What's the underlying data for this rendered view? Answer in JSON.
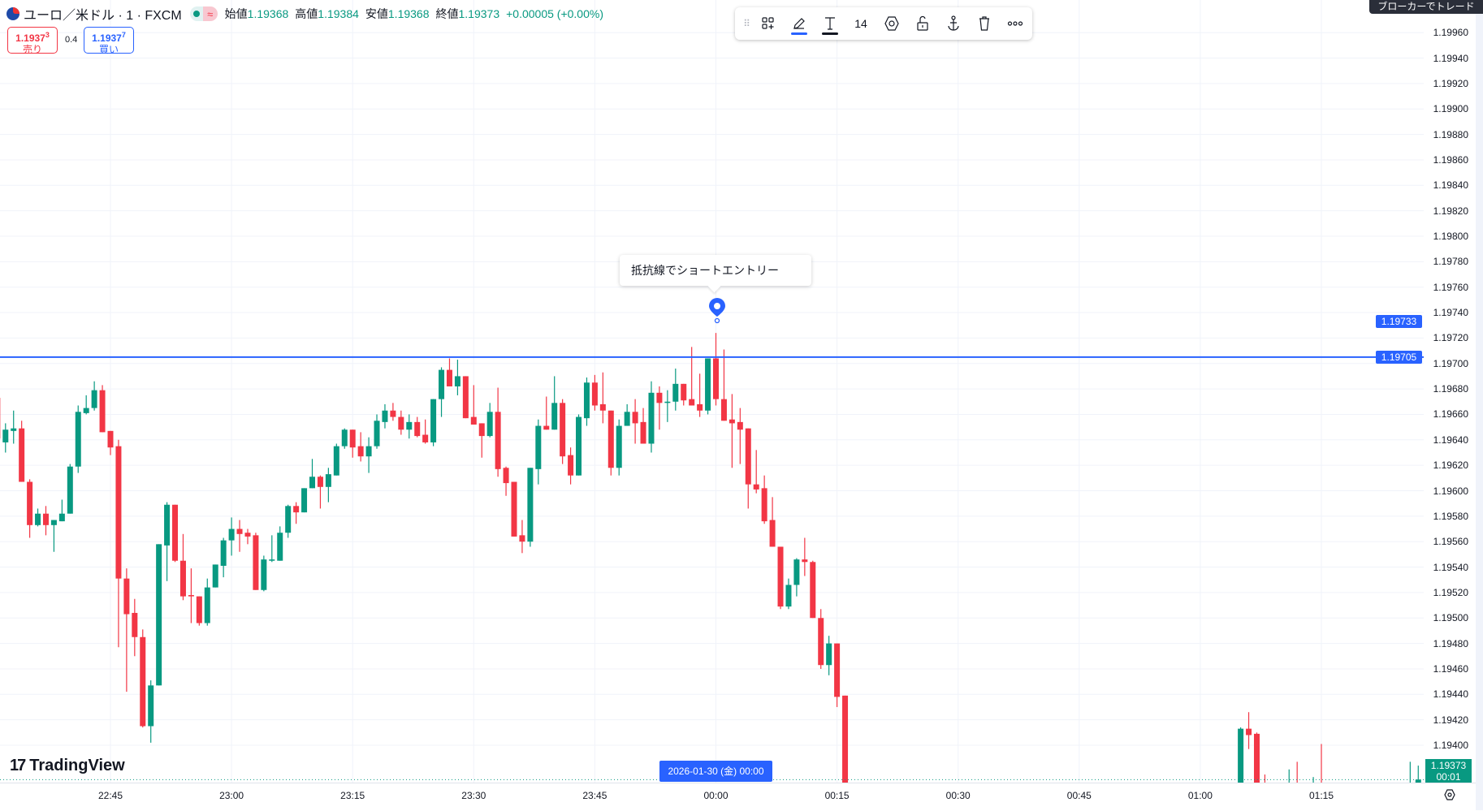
{
  "header": {
    "symbol": "ユーロ／米ドル · 1 · FXCM",
    "market_status_badge": "≈",
    "open_label": "始値",
    "open": "1.19368",
    "high_label": "高値",
    "high": "1.19384",
    "low_label": "安値",
    "low": "1.19368",
    "close_label": "終値",
    "close": "1.19373",
    "change": "+0.00005 (+0.00%)"
  },
  "trade": {
    "sell_price": "1.1937",
    "sell_price_sup": "3",
    "sell_label": "売り",
    "spread": "0.4",
    "buy_price": "1.1937",
    "buy_price_sup": "7",
    "buy_label": "買い"
  },
  "toolbar": {
    "font_size": "14",
    "icons": [
      "drag-handle",
      "template",
      "pencil",
      "text",
      "settings",
      "lock",
      "anchor",
      "trash",
      "more"
    ],
    "line_color": "#2962ff",
    "text_color": "#131722"
  },
  "broker_button": "ブローカーでトレード",
  "note": {
    "text": "抵抗線でショートエントリー",
    "pin_color": "#2962ff"
  },
  "logo": "TradingView",
  "colors": {
    "up": "#089981",
    "down": "#f23645",
    "line": "#2962ff",
    "grid": "#f0f3fa"
  },
  "price_labels": {
    "pin_price": "1.19733",
    "line_price": "1.19705",
    "current_price": "1.19373",
    "countdown": "00:01"
  },
  "time_selection": "2026-01-30 (金)  00:00",
  "chart_data": {
    "type": "candlestick",
    "interval": "1m",
    "y_ticks": [
      "1.19960",
      "1.19940",
      "1.19920",
      "1.19900",
      "1.19880",
      "1.19860",
      "1.19840",
      "1.19820",
      "1.19800",
      "1.19780",
      "1.19760",
      "1.19740",
      "1.19720",
      "1.19700",
      "1.19680",
      "1.19660",
      "1.19640",
      "1.19620",
      "1.19600",
      "1.19580",
      "1.19560",
      "1.19540",
      "1.19520",
      "1.19500",
      "1.19480",
      "1.19460",
      "1.19440",
      "1.19420",
      "1.19400"
    ],
    "x_ticks": [
      "22:45",
      "23:00",
      "23:15",
      "23:30",
      "23:45",
      "00:00",
      "00:15",
      "00:30",
      "00:45",
      "01:00",
      "01:15"
    ],
    "horizontal_line": 1.19705,
    "grid": true,
    "candles": [
      [
        "22:31",
        1.19673,
        1.19688,
        1.19638,
        1.19641
      ],
      [
        "22:32",
        1.19638,
        1.19653,
        1.1963,
        1.19648
      ],
      [
        "22:33",
        1.19647,
        1.19663,
        1.19637,
        1.19649
      ],
      [
        "22:34",
        1.19649,
        1.19655,
        1.19607,
        1.19607
      ],
      [
        "22:35",
        1.19607,
        1.19609,
        1.19563,
        1.19573
      ],
      [
        "22:36",
        1.19573,
        1.19586,
        1.19572,
        1.19582
      ],
      [
        "22:37",
        1.19582,
        1.19588,
        1.19565,
        1.19573
      ],
      [
        "22:38",
        1.19573,
        1.19577,
        1.19552,
        1.19577
      ],
      [
        "22:39",
        1.19576,
        1.19593,
        1.19576,
        1.19582
      ],
      [
        "22:40",
        1.19582,
        1.19621,
        1.19582,
        1.19619
      ],
      [
        "22:41",
        1.19619,
        1.19667,
        1.19614,
        1.19662
      ],
      [
        "22:42",
        1.19661,
        1.19675,
        1.1966,
        1.19665
      ],
      [
        "22:43",
        1.19665,
        1.19686,
        1.19663,
        1.19679
      ],
      [
        "22:44",
        1.19679,
        1.19683,
        1.19646,
        1.19646
      ],
      [
        "22:45",
        1.19647,
        1.19647,
        1.19628,
        1.19634
      ],
      [
        "22:46",
        1.19635,
        1.1964,
        1.19477,
        1.19531
      ],
      [
        "22:47",
        1.19531,
        1.19539,
        1.19442,
        1.19503
      ],
      [
        "22:48",
        1.19504,
        1.19515,
        1.1947,
        1.19485
      ],
      [
        "22:49",
        1.19485,
        1.19491,
        1.19414,
        1.19415
      ],
      [
        "22:50",
        1.19415,
        1.19451,
        1.19402,
        1.19447
      ],
      [
        "22:51",
        1.19447,
        1.19558,
        1.19447,
        1.19558
      ],
      [
        "22:52",
        1.19557,
        1.19591,
        1.19529,
        1.19589
      ],
      [
        "22:53",
        1.19589,
        1.19589,
        1.19544,
        1.19545
      ],
      [
        "22:54",
        1.19545,
        1.19566,
        1.19514,
        1.19517
      ],
      [
        "22:55",
        1.19518,
        1.19539,
        1.19496,
        1.19517
      ],
      [
        "22:56",
        1.19517,
        1.19517,
        1.19494,
        1.19496
      ],
      [
        "22:57",
        1.19496,
        1.19531,
        1.19494,
        1.19524
      ],
      [
        "22:58",
        1.19524,
        1.19542,
        1.19524,
        1.19542
      ],
      [
        "22:59",
        1.19541,
        1.19563,
        1.19532,
        1.19561
      ],
      [
        "23:00",
        1.19561,
        1.19579,
        1.19549,
        1.1957
      ],
      [
        "23:01",
        1.1957,
        1.19577,
        1.19552,
        1.19566
      ],
      [
        "23:02",
        1.19567,
        1.1957,
        1.19558,
        1.19564
      ],
      [
        "23:03",
        1.19565,
        1.19567,
        1.19522,
        1.19522
      ],
      [
        "23:04",
        1.19522,
        1.19549,
        1.19521,
        1.19546
      ],
      [
        "23:05",
        1.19545,
        1.19565,
        1.19544,
        1.19546
      ],
      [
        "23:06",
        1.19545,
        1.19572,
        1.19545,
        1.19567
      ],
      [
        "23:07",
        1.19567,
        1.19589,
        1.19563,
        1.19588
      ],
      [
        "23:08",
        1.19588,
        1.19591,
        1.19574,
        1.19583
      ],
      [
        "23:09",
        1.19583,
        1.19602,
        1.19583,
        1.19602
      ],
      [
        "23:10",
        1.19602,
        1.19625,
        1.19602,
        1.19611
      ],
      [
        "23:11",
        1.19611,
        1.19612,
        1.19586,
        1.19603
      ],
      [
        "23:12",
        1.19603,
        1.19618,
        1.19591,
        1.19613
      ],
      [
        "23:13",
        1.19612,
        1.19637,
        1.19612,
        1.19635
      ],
      [
        "23:14",
        1.19635,
        1.19649,
        1.19633,
        1.19648
      ],
      [
        "23:15",
        1.19648,
        1.19648,
        1.19626,
        1.19634
      ],
      [
        "23:16",
        1.19635,
        1.19646,
        1.19623,
        1.19627
      ],
      [
        "23:17",
        1.19627,
        1.19642,
        1.19614,
        1.19635
      ],
      [
        "23:18",
        1.19635,
        1.1966,
        1.19633,
        1.19655
      ],
      [
        "23:19",
        1.19654,
        1.19668,
        1.19649,
        1.19663
      ],
      [
        "23:20",
        1.19663,
        1.19669,
        1.19655,
        1.19658
      ],
      [
        "23:21",
        1.19658,
        1.19663,
        1.19644,
        1.19648
      ],
      [
        "23:22",
        1.19648,
        1.1966,
        1.19641,
        1.19654
      ],
      [
        "23:23",
        1.19654,
        1.19658,
        1.19642,
        1.19643
      ],
      [
        "23:24",
        1.19644,
        1.19656,
        1.19637,
        1.19638
      ],
      [
        "23:25",
        1.19638,
        1.19672,
        1.19635,
        1.19672
      ],
      [
        "23:26",
        1.19672,
        1.19697,
        1.19658,
        1.19695
      ],
      [
        "23:27",
        1.19695,
        1.19704,
        1.19682,
        1.19682
      ],
      [
        "23:28",
        1.19682,
        1.19703,
        1.19675,
        1.1969
      ],
      [
        "23:29",
        1.1969,
        1.1969,
        1.19657,
        1.19657
      ],
      [
        "23:30",
        1.19658,
        1.19683,
        1.19652,
        1.19652
      ],
      [
        "23:31",
        1.19653,
        1.19653,
        1.19626,
        1.19643
      ],
      [
        "23:32",
        1.19643,
        1.19669,
        1.19642,
        1.19662
      ],
      [
        "23:33",
        1.19662,
        1.19681,
        1.19611,
        1.19617
      ],
      [
        "23:34",
        1.19618,
        1.19619,
        1.19596,
        1.19606
      ],
      [
        "23:35",
        1.19607,
        1.19607,
        1.19564,
        1.19564
      ],
      [
        "23:36",
        1.19565,
        1.19577,
        1.19551,
        1.1956
      ],
      [
        "23:37",
        1.1956,
        1.19618,
        1.19556,
        1.19618
      ],
      [
        "23:38",
        1.19617,
        1.19656,
        1.19605,
        1.19651
      ],
      [
        "23:39",
        1.19651,
        1.19674,
        1.19648,
        1.19648
      ],
      [
        "23:40",
        1.19648,
        1.1969,
        1.19648,
        1.19669
      ],
      [
        "23:41",
        1.19669,
        1.19672,
        1.19621,
        1.19627
      ],
      [
        "23:42",
        1.19628,
        1.19634,
        1.19605,
        1.19612
      ],
      [
        "23:43",
        1.19612,
        1.1966,
        1.19612,
        1.19658
      ],
      [
        "23:44",
        1.19657,
        1.19689,
        1.19651,
        1.19685
      ],
      [
        "23:45",
        1.19685,
        1.19691,
        1.19663,
        1.19667
      ],
      [
        "23:46",
        1.19668,
        1.19693,
        1.19653,
        1.19663
      ],
      [
        "23:47",
        1.19663,
        1.19663,
        1.19612,
        1.19618
      ],
      [
        "23:48",
        1.19618,
        1.19656,
        1.19612,
        1.19651
      ],
      [
        "23:49",
        1.19651,
        1.19668,
        1.19651,
        1.19662
      ],
      [
        "23:50",
        1.19662,
        1.19672,
        1.19637,
        1.19653
      ],
      [
        "23:51",
        1.19654,
        1.19665,
        1.19637,
        1.19637
      ],
      [
        "23:52",
        1.19637,
        1.19686,
        1.1963,
        1.19677
      ],
      [
        "23:53",
        1.19677,
        1.19682,
        1.19648,
        1.19669
      ],
      [
        "23:54",
        1.19669,
        1.19679,
        1.19654,
        1.1967
      ],
      [
        "23:55",
        1.1967,
        1.19696,
        1.19663,
        1.19684
      ],
      [
        "23:56",
        1.19684,
        1.19684,
        1.19667,
        1.19671
      ],
      [
        "23:57",
        1.19672,
        1.19713,
        1.19667,
        1.19667
      ],
      [
        "23:58",
        1.19668,
        1.19692,
        1.19658,
        1.19663
      ],
      [
        "23:59",
        1.19663,
        1.19704,
        1.1966,
        1.19704
      ],
      [
        "00:00",
        1.19704,
        1.19724,
        1.19667,
        1.19672
      ],
      [
        "00:01",
        1.19672,
        1.19711,
        1.19655,
        1.19655
      ],
      [
        "00:02",
        1.19656,
        1.19676,
        1.19618,
        1.19653
      ],
      [
        "00:03",
        1.19654,
        1.19665,
        1.19621,
        1.19648
      ],
      [
        "00:04",
        1.19649,
        1.19649,
        1.19586,
        1.19605
      ],
      [
        "00:05",
        1.19605,
        1.19632,
        1.19598,
        1.19601
      ],
      [
        "00:06",
        1.19602,
        1.19612,
        1.19574,
        1.19576
      ],
      [
        "00:07",
        1.19577,
        1.19595,
        1.19556,
        1.19556
      ],
      [
        "00:08",
        1.19556,
        1.19556,
        1.19507,
        1.19509
      ],
      [
        "00:09",
        1.19509,
        1.19531,
        1.19507,
        1.19526
      ],
      [
        "00:10",
        1.19526,
        1.19547,
        1.19517,
        1.19546
      ],
      [
        "00:11",
        1.19546,
        1.19563,
        1.19533,
        1.19544
      ],
      [
        "00:12",
        1.19544,
        1.19545,
        1.195,
        1.195
      ],
      [
        "00:13",
        1.195,
        1.19507,
        1.1946,
        1.19463
      ],
      [
        "00:14",
        1.19463,
        1.19486,
        1.19455,
        1.1948
      ],
      [
        "00:15",
        1.1948,
        1.1948,
        1.1943,
        1.19438
      ],
      [
        "00:16",
        1.19439,
        1.19439,
        1.1935,
        1.19352
      ],
      [
        "01:05",
        1.1936,
        1.19414,
        1.19355,
        1.19413
      ],
      [
        "01:06",
        1.19413,
        1.19426,
        1.19397,
        1.19408
      ],
      [
        "01:07",
        1.19409,
        1.1941,
        1.19355,
        1.1936
      ],
      [
        "01:08",
        1.1937,
        1.19377,
        1.19365,
        1.19368
      ],
      [
        "01:11",
        1.19367,
        1.19381,
        1.19366,
        1.1937
      ],
      [
        "01:12",
        1.1937,
        1.19387,
        1.19366,
        1.19368
      ],
      [
        "01:14",
        1.19367,
        1.19375,
        1.19367,
        1.19368
      ],
      [
        "01:15",
        1.1937,
        1.19401,
        1.19366,
        1.19368
      ],
      [
        "01:26",
        1.19366,
        1.19387,
        1.19366,
        1.19369
      ],
      [
        "01:27",
        1.19368,
        1.19384,
        1.19368,
        1.19373
      ]
    ]
  }
}
